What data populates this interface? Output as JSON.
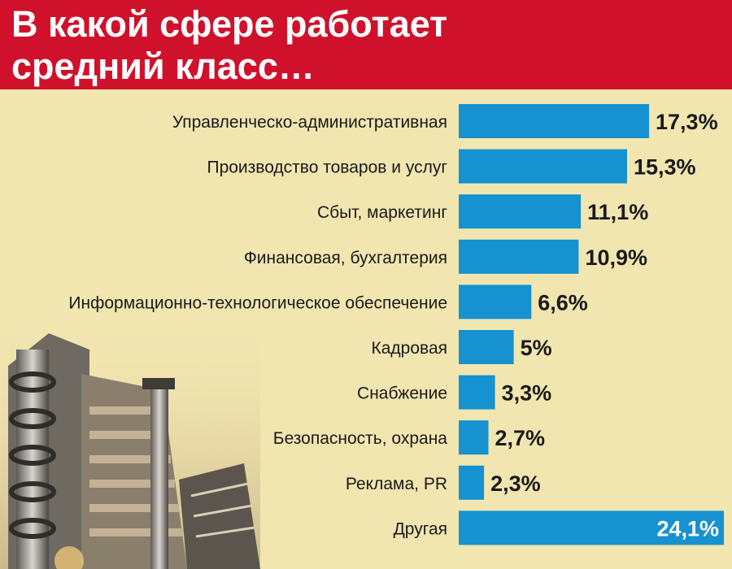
{
  "header": {
    "title": "В какой сфере работает\nсредний класс…"
  },
  "colors": {
    "background": "#f1e5b0",
    "header": "#d0112b",
    "bar": "#1592cf"
  },
  "chart_data": {
    "type": "bar",
    "orientation": "horizontal",
    "title": "В какой сфере работает средний класс…",
    "categories": [
      "Управленческо-административная",
      "Производство товаров и услуг",
      "Сбыт, маркетинг",
      "Финансовая, бухгалтерия",
      "Информационно-технологическое обеспечение",
      "Кадровая",
      "Снабжение",
      "Безопасность, охрана",
      "Реклама, PR",
      "Другая"
    ],
    "values": [
      17.3,
      15.3,
      11.1,
      10.9,
      6.6,
      5,
      3.3,
      2.7,
      2.3,
      24.1
    ],
    "value_labels": [
      "17,3%",
      "15,3%",
      "11,1%",
      "10,9%",
      "6,6%",
      "5%",
      "3,3%",
      "2,7%",
      "2,3%",
      "24,1%"
    ],
    "xlim": [
      0,
      24.1
    ],
    "grid": false,
    "legend": "none"
  }
}
